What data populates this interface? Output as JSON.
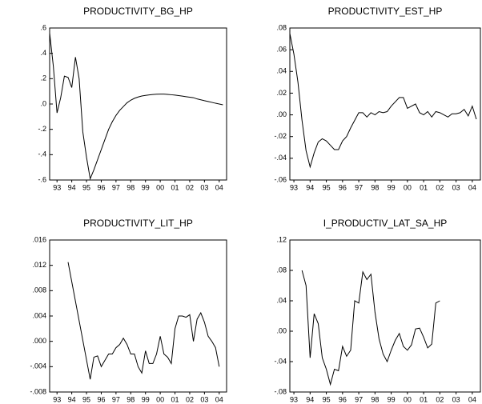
{
  "chart_data": [
    {
      "type": "line",
      "title": "PRODUCTIVITY_BG_HP",
      "color": "#000000",
      "x": [
        1993.0,
        1993.25,
        1993.5,
        1993.75,
        1994.0,
        1994.25,
        1994.5,
        1994.75,
        1995.0,
        1995.25,
        1995.5,
        1995.75,
        1996.0,
        1996.25,
        1996.5,
        1996.75,
        1997.0,
        1997.25,
        1997.5,
        1997.75,
        1998.0,
        1998.25,
        1998.5,
        1998.75,
        1999.0,
        1999.25,
        1999.5,
        1999.75,
        2000.0,
        2000.25,
        2000.5,
        2000.75,
        2001.0,
        2001.25,
        2001.5,
        2001.75,
        2002.0,
        2002.25,
        2002.5,
        2002.75,
        2003.0,
        2003.25,
        2003.5,
        2003.75,
        2004.0,
        2004.25,
        2004.5,
        2004.75
      ],
      "values": [
        0.56,
        0.3,
        -0.07,
        0.05,
        0.22,
        0.21,
        0.13,
        0.37,
        0.2,
        -0.22,
        -0.42,
        -0.59,
        -0.52,
        -0.44,
        -0.36,
        -0.28,
        -0.2,
        -0.14,
        -0.09,
        -0.05,
        -0.02,
        0.01,
        0.03,
        0.045,
        0.055,
        0.063,
        0.068,
        0.072,
        0.075,
        0.077,
        0.078,
        0.078,
        0.076,
        0.073,
        0.07,
        0.066,
        0.062,
        0.058,
        0.054,
        0.05,
        0.04,
        0.033,
        0.026,
        0.02,
        0.013,
        0.006,
        0.0,
        -0.006
      ],
      "xlim": [
        1993,
        2005
      ],
      "xticks": [
        {
          "value": 1993.5,
          "label": "93"
        },
        {
          "value": 1994.5,
          "label": "94"
        },
        {
          "value": 1995.5,
          "label": "95"
        },
        {
          "value": 1996.5,
          "label": "96"
        },
        {
          "value": 1997.5,
          "label": "97"
        },
        {
          "value": 1998.5,
          "label": "98"
        },
        {
          "value": 1999.5,
          "label": "99"
        },
        {
          "value": 2000.5,
          "label": "00"
        },
        {
          "value": 2001.5,
          "label": "01"
        },
        {
          "value": 2002.5,
          "label": "02"
        },
        {
          "value": 2003.5,
          "label": "03"
        },
        {
          "value": 2004.5,
          "label": "04"
        }
      ],
      "ylim": [
        -0.6,
        0.6
      ],
      "yticks": [
        {
          "value": 0.6,
          "label": ".6"
        },
        {
          "value": 0.4,
          "label": ".4"
        },
        {
          "value": 0.2,
          "label": ".2"
        },
        {
          "value": 0,
          "label": ".0"
        },
        {
          "value": -0.2,
          "label": "-.2"
        },
        {
          "value": -0.4,
          "label": "-.4"
        },
        {
          "value": -0.6,
          "label": "-.6"
        }
      ]
    },
    {
      "type": "line",
      "title": "PRODUCTIVITY_EST_HP",
      "color": "#000000",
      "x": [
        1993.25,
        1993.5,
        1993.75,
        1994.0,
        1994.25,
        1994.5,
        1994.75,
        1995.0,
        1995.25,
        1995.5,
        1995.75,
        1996.0,
        1996.25,
        1996.5,
        1996.75,
        1997.0,
        1997.25,
        1997.5,
        1997.75,
        1998.0,
        1998.25,
        1998.5,
        1998.75,
        1999.0,
        1999.25,
        1999.5,
        1999.75,
        2000.0,
        2000.25,
        2000.5,
        2000.75,
        2001.0,
        2001.25,
        2001.5,
        2001.75,
        2002.0,
        2002.25,
        2002.5,
        2002.75,
        2003.0,
        2003.25,
        2003.5,
        2003.75,
        2004.0,
        2004.25,
        2004.5,
        2004.75
      ],
      "values": [
        0.075,
        0.056,
        0.03,
        -0.005,
        -0.033,
        -0.048,
        -0.035,
        -0.025,
        -0.022,
        -0.024,
        -0.028,
        -0.032,
        -0.032,
        -0.024,
        -0.02,
        -0.012,
        -0.005,
        0.002,
        0.002,
        -0.002,
        0.002,
        0.0,
        0.003,
        0.002,
        0.003,
        0.008,
        0.012,
        0.016,
        0.016,
        0.006,
        0.008,
        0.01,
        0.002,
        0.0,
        0.003,
        -0.002,
        0.003,
        0.002,
        0.0,
        -0.002,
        0.001,
        0.001,
        0.002,
        0.005,
        -0.001,
        0.008,
        -0.004
      ],
      "xlim": [
        1993.25,
        2005
      ],
      "xticks": [
        {
          "value": 1993.5,
          "label": "93"
        },
        {
          "value": 1994.5,
          "label": "94"
        },
        {
          "value": 1995.5,
          "label": "95"
        },
        {
          "value": 1996.5,
          "label": "96"
        },
        {
          "value": 1997.5,
          "label": "97"
        },
        {
          "value": 1998.5,
          "label": "98"
        },
        {
          "value": 1999.5,
          "label": "99"
        },
        {
          "value": 2000.5,
          "label": "00"
        },
        {
          "value": 2001.5,
          "label": "01"
        },
        {
          "value": 2002.5,
          "label": "02"
        },
        {
          "value": 2003.5,
          "label": "03"
        },
        {
          "value": 2004.5,
          "label": "04"
        }
      ],
      "ylim": [
        -0.06,
        0.08
      ],
      "yticks": [
        {
          "value": 0.08,
          "label": ".08"
        },
        {
          "value": 0.06,
          "label": ".06"
        },
        {
          "value": 0.04,
          "label": ".04"
        },
        {
          "value": 0.02,
          "label": ".02"
        },
        {
          "value": 0,
          "label": ".00"
        },
        {
          "value": -0.02,
          "label": "-.02"
        },
        {
          "value": -0.04,
          "label": "-.04"
        },
        {
          "value": -0.06,
          "label": "-.06"
        }
      ]
    },
    {
      "type": "line",
      "title": "PRODUCTIVITY_LIT_HP",
      "color": "#000000",
      "x": [
        1994.25,
        1995.75,
        1996.0,
        1996.25,
        1996.5,
        1996.75,
        1997.0,
        1997.25,
        1997.5,
        1997.75,
        1998.0,
        1998.25,
        1998.5,
        1998.75,
        1999.0,
        1999.25,
        1999.5,
        1999.75,
        2000.0,
        2000.25,
        2000.5,
        2000.75,
        2001.0,
        2001.25,
        2001.5,
        2001.75,
        2002.0,
        2002.25,
        2002.5,
        2002.75,
        2003.0,
        2003.25,
        2003.5,
        2003.75,
        2004.0,
        2004.25,
        2004.5
      ],
      "values": [
        0.0125,
        -0.006,
        -0.0025,
        -0.0023,
        -0.004,
        -0.003,
        -0.002,
        -0.002,
        -0.001,
        -0.0005,
        0.0005,
        -0.0005,
        -0.002,
        -0.002,
        -0.004,
        -0.005,
        -0.0015,
        -0.0035,
        -0.0035,
        -0.002,
        0.0008,
        -0.002,
        -0.0025,
        -0.0035,
        0.002,
        0.004,
        0.004,
        0.0038,
        0.0042,
        0.0,
        0.0035,
        0.0045,
        0.003,
        0.0008,
        0.0,
        -0.001,
        -0.004
      ],
      "xlim": [
        1993,
        2005
      ],
      "xticks": [
        {
          "value": 1993.5,
          "label": "93"
        },
        {
          "value": 1994.5,
          "label": "94"
        },
        {
          "value": 1995.5,
          "label": "95"
        },
        {
          "value": 1996.5,
          "label": "96"
        },
        {
          "value": 1997.5,
          "label": "97"
        },
        {
          "value": 1998.5,
          "label": "98"
        },
        {
          "value": 1999.5,
          "label": "99"
        },
        {
          "value": 2000.5,
          "label": "00"
        },
        {
          "value": 2001.5,
          "label": "01"
        },
        {
          "value": 2002.5,
          "label": "02"
        },
        {
          "value": 2003.5,
          "label": "03"
        },
        {
          "value": 2004.5,
          "label": "04"
        }
      ],
      "ylim": [
        -0.008,
        0.016
      ],
      "yticks": [
        {
          "value": 0.016,
          "label": ".016"
        },
        {
          "value": 0.012,
          "label": ".012"
        },
        {
          "value": 0.008,
          "label": ".008"
        },
        {
          "value": 0.004,
          "label": ".004"
        },
        {
          "value": 0,
          "label": ".000"
        },
        {
          "value": -0.004,
          "label": "-.004"
        },
        {
          "value": -0.008,
          "label": "-.008"
        }
      ]
    },
    {
      "type": "line",
      "title": "I_PRODUCTIV_LAT_SA_HP",
      "color": "#000000",
      "x": [
        1994.0,
        1994.25,
        1994.5,
        1994.75,
        1995.0,
        1995.25,
        1995.5,
        1995.75,
        1996.0,
        1996.25,
        1996.5,
        1996.75,
        1997.0,
        1997.25,
        1997.5,
        1997.75,
        1998.0,
        1998.25,
        1998.5,
        1998.75,
        1999.0,
        1999.25,
        1999.5,
        1999.75,
        2000.0,
        2000.25,
        2000.5,
        2000.75,
        2001.0,
        2001.25,
        2001.5,
        2001.75,
        2002.0,
        2002.25,
        2002.5
      ],
      "values": [
        0.08,
        0.06,
        -0.035,
        0.023,
        0.01,
        -0.035,
        -0.05,
        -0.07,
        -0.05,
        -0.052,
        -0.02,
        -0.033,
        -0.025,
        0.04,
        0.037,
        0.078,
        0.068,
        0.075,
        0.025,
        -0.01,
        -0.03,
        -0.04,
        -0.025,
        -0.012,
        -0.003,
        -0.02,
        -0.025,
        -0.018,
        0.003,
        0.004,
        -0.008,
        -0.022,
        -0.017,
        0.037,
        0.04
      ],
      "xlim": [
        1993.25,
        2005
      ],
      "xticks": [
        {
          "value": 1993.5,
          "label": "93"
        },
        {
          "value": 1994.5,
          "label": "94"
        },
        {
          "value": 1995.5,
          "label": "95"
        },
        {
          "value": 1996.5,
          "label": "96"
        },
        {
          "value": 1997.5,
          "label": "97"
        },
        {
          "value": 1998.5,
          "label": "98"
        },
        {
          "value": 1999.5,
          "label": "99"
        },
        {
          "value": 2000.5,
          "label": "00"
        },
        {
          "value": 2001.5,
          "label": "01"
        },
        {
          "value": 2002.5,
          "label": "02"
        },
        {
          "value": 2003.5,
          "label": "03"
        },
        {
          "value": 2004.5,
          "label": "04"
        }
      ],
      "ylim": [
        -0.08,
        0.12
      ],
      "yticks": [
        {
          "value": 0.12,
          "label": ".12"
        },
        {
          "value": 0.08,
          "label": ".08"
        },
        {
          "value": 0.04,
          "label": ".04"
        },
        {
          "value": 0,
          "label": ".00"
        },
        {
          "value": -0.04,
          "label": "-.04"
        },
        {
          "value": -0.08,
          "label": "-.08"
        }
      ]
    }
  ]
}
